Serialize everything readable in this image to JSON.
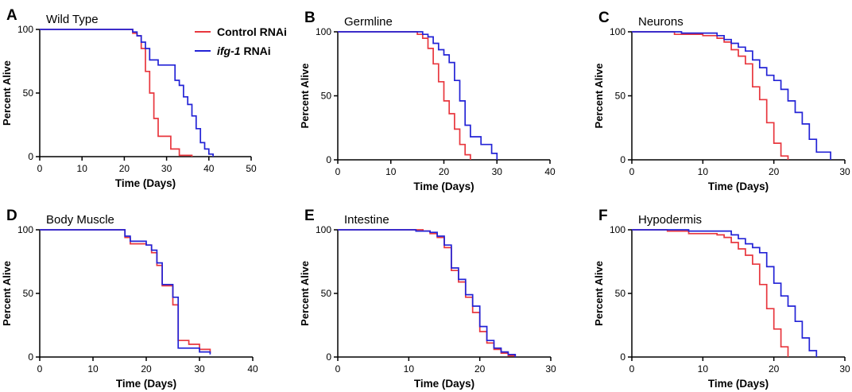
{
  "legend": {
    "control": {
      "label": "Control RNAi",
      "color": "#e8373e"
    },
    "ifg1": {
      "gene": "ifg-1",
      "suffix": " RNAi",
      "color": "#2323d6"
    }
  },
  "chart_data": [
    {
      "panel": "A",
      "type": "line",
      "step": true,
      "title": "Wild Type",
      "xlabel": "Time (Days)",
      "ylabel": "Percent Alive",
      "xlim": [
        0,
        50
      ],
      "ylim": [
        0,
        100
      ],
      "xticks": [
        0,
        10,
        20,
        30,
        40,
        50
      ],
      "yticks": [
        0,
        50,
        100
      ],
      "series": [
        {
          "name": "Control RNAi",
          "color": "#e8373e",
          "x": [
            0,
            20,
            22,
            23,
            24,
            25,
            26,
            27,
            28,
            30,
            31,
            33,
            36
          ],
          "y": [
            100,
            100,
            97,
            95,
            85,
            67,
            50,
            30,
            16,
            16,
            6,
            1,
            0
          ]
        },
        {
          "name": "ifg-1 RNAi",
          "color": "#2323d6",
          "x": [
            0,
            20,
            22,
            23,
            24,
            25,
            26,
            28,
            30,
            32,
            33,
            34,
            35,
            36,
            37,
            38,
            39,
            40,
            41
          ],
          "y": [
            100,
            100,
            98,
            95,
            90,
            85,
            76,
            72,
            72,
            60,
            56,
            47,
            41,
            32,
            22,
            11,
            6,
            2,
            0
          ]
        }
      ]
    },
    {
      "panel": "B",
      "type": "line",
      "step": true,
      "title": "Germline",
      "xlabel": "Time (Days)",
      "ylabel": "Percent Alive",
      "xlim": [
        0,
        40
      ],
      "ylim": [
        0,
        100
      ],
      "xticks": [
        0,
        10,
        20,
        30,
        40
      ],
      "yticks": [
        0,
        50,
        100
      ],
      "series": [
        {
          "name": "Control RNAi",
          "color": "#e8373e",
          "x": [
            0,
            14,
            15,
            16,
            17,
            18,
            19,
            20,
            21,
            22,
            23,
            24,
            25
          ],
          "y": [
            100,
            100,
            98,
            95,
            87,
            75,
            61,
            46,
            36,
            24,
            12,
            4,
            0
          ]
        },
        {
          "name": "ifg-1 RNAi",
          "color": "#2323d6",
          "x": [
            0,
            14,
            16,
            17,
            18,
            19,
            20,
            21,
            22,
            23,
            24,
            25,
            27,
            29,
            30
          ],
          "y": [
            100,
            100,
            98,
            96,
            91,
            86,
            82,
            76,
            62,
            46,
            27,
            18,
            12,
            5,
            0
          ]
        }
      ]
    },
    {
      "panel": "C",
      "type": "line",
      "step": true,
      "title": "Neurons",
      "xlabel": "Time (Days)",
      "ylabel": "Percent Alive",
      "xlim": [
        0,
        30
      ],
      "ylim": [
        0,
        100
      ],
      "xticks": [
        0,
        10,
        20,
        30
      ],
      "yticks": [
        0,
        50,
        100
      ],
      "series": [
        {
          "name": "Control RNAi",
          "color": "#e8373e",
          "x": [
            0,
            6,
            10,
            12,
            13,
            14,
            15,
            16,
            17,
            18,
            19,
            20,
            21,
            22
          ],
          "y": [
            100,
            98,
            97,
            95,
            92,
            86,
            81,
            75,
            57,
            47,
            29,
            13,
            3,
            0
          ]
        },
        {
          "name": "ifg-1 RNAi",
          "color": "#2323d6",
          "x": [
            0,
            7,
            12,
            13,
            14,
            15,
            16,
            17,
            18,
            19,
            20,
            21,
            22,
            23,
            24,
            25,
            26,
            28
          ],
          "y": [
            100,
            99,
            97,
            94,
            91,
            88,
            85,
            78,
            72,
            66,
            62,
            55,
            46,
            37,
            28,
            16,
            6,
            0
          ]
        }
      ]
    },
    {
      "panel": "D",
      "type": "line",
      "step": true,
      "title": "Body Muscle",
      "xlabel": "Time (Days)",
      "ylabel": "Percent Alive",
      "xlim": [
        0,
        40
      ],
      "ylim": [
        0,
        100
      ],
      "xticks": [
        0,
        10,
        20,
        30,
        40
      ],
      "yticks": [
        0,
        50,
        100
      ],
      "series": [
        {
          "name": "Control RNAi",
          "color": "#e8373e",
          "x": [
            0,
            15,
            16,
            17,
            20,
            21,
            22,
            23,
            25,
            26,
            28,
            30,
            32
          ],
          "y": [
            100,
            100,
            94,
            89,
            88,
            82,
            72,
            56,
            41,
            13,
            10,
            6,
            3
          ]
        },
        {
          "name": "ifg-1 RNAi",
          "color": "#2323d6",
          "x": [
            0,
            15,
            16,
            17,
            20,
            21,
            22,
            23,
            25,
            26,
            28,
            30,
            32
          ],
          "y": [
            100,
            100,
            95,
            91,
            88,
            84,
            74,
            57,
            47,
            7,
            7,
            4,
            2
          ]
        }
      ]
    },
    {
      "panel": "E",
      "type": "line",
      "step": true,
      "title": "Intestine",
      "xlabel": "Time (Days)",
      "ylabel": "Percent Alive",
      "xlim": [
        0,
        30
      ],
      "ylim": [
        0,
        100
      ],
      "xticks": [
        0,
        10,
        20,
        30
      ],
      "yticks": [
        0,
        50,
        100
      ],
      "series": [
        {
          "name": "Control RNAi",
          "color": "#e8373e",
          "x": [
            0,
            10,
            12,
            13,
            14,
            15,
            16,
            17,
            18,
            19,
            20,
            21,
            22,
            23,
            24,
            25
          ],
          "y": [
            100,
            100,
            99,
            97,
            94,
            86,
            68,
            59,
            47,
            35,
            20,
            11,
            6,
            3,
            1,
            0
          ]
        },
        {
          "name": "ifg-1 RNAi",
          "color": "#2323d6",
          "x": [
            0,
            11,
            13,
            14,
            15,
            16,
            17,
            18,
            19,
            20,
            21,
            22,
            23,
            24,
            25
          ],
          "y": [
            100,
            99,
            98,
            95,
            88,
            70,
            61,
            49,
            40,
            24,
            13,
            7,
            4,
            2,
            0
          ]
        }
      ]
    },
    {
      "panel": "F",
      "type": "line",
      "step": true,
      "title": "Hypodermis",
      "xlabel": "Time (Days)",
      "ylabel": "Percent Alive",
      "xlim": [
        0,
        30
      ],
      "ylim": [
        0,
        100
      ],
      "xticks": [
        0,
        10,
        20,
        30
      ],
      "yticks": [
        0,
        50,
        100
      ],
      "series": [
        {
          "name": "Control RNAi",
          "color": "#e8373e",
          "x": [
            0,
            5,
            8,
            12,
            13,
            14,
            15,
            16,
            17,
            18,
            19,
            20,
            21,
            22
          ],
          "y": [
            100,
            99,
            97,
            96,
            94,
            90,
            85,
            80,
            73,
            57,
            38,
            22,
            8,
            0
          ]
        },
        {
          "name": "ifg-1 RNAi",
          "color": "#2323d6",
          "x": [
            0,
            8,
            14,
            15,
            16,
            17,
            18,
            19,
            20,
            21,
            22,
            23,
            24,
            25,
            26
          ],
          "y": [
            100,
            99,
            96,
            93,
            89,
            86,
            82,
            71,
            58,
            48,
            40,
            28,
            15,
            5,
            0
          ]
        }
      ]
    }
  ]
}
